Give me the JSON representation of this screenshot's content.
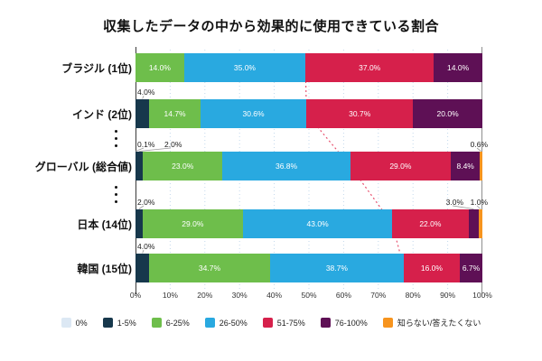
{
  "title": "収集したデータの中から効果的に使用できている割合",
  "chart_data": {
    "type": "bar",
    "orientation": "horizontal",
    "stacked": true,
    "unit": "%",
    "title": "収集したデータの中から効果的に使用できている割合",
    "categories": [
      "ブラジル (1位)",
      "インド (2位)",
      "グローバル (総合値)",
      "日本 (14位)",
      "韓国 (15位)"
    ],
    "series": [
      {
        "name": "0%",
        "color": "#dce8f4",
        "values": [
          0,
          0,
          0.1,
          0,
          0
        ]
      },
      {
        "name": "1-5%",
        "color": "#17384c",
        "values": [
          0,
          4.0,
          2.0,
          2.0,
          4.0
        ]
      },
      {
        "name": "6-25%",
        "color": "#6ebe4b",
        "values": [
          14.0,
          14.7,
          23.0,
          29.0,
          34.7
        ]
      },
      {
        "name": "26-50%",
        "color": "#29a9e0",
        "values": [
          35.0,
          30.6,
          36.8,
          43.0,
          38.7
        ]
      },
      {
        "name": "51-75%",
        "color": "#d6204b",
        "values": [
          37.0,
          30.7,
          29.0,
          22.0,
          16.0
        ]
      },
      {
        "name": "76-100%",
        "color": "#5e1055",
        "values": [
          14.0,
          20.0,
          8.4,
          3.0,
          6.7
        ]
      },
      {
        "name": "知らない/答えたくない",
        "color": "#f7941e",
        "values": [
          0,
          0,
          0.6,
          1.0,
          0
        ]
      }
    ],
    "x_ticks": [
      "0%",
      "10%",
      "20%",
      "30%",
      "40%",
      "50%",
      "60%",
      "70%",
      "80%",
      "90%",
      "100%"
    ],
    "xlim": [
      0,
      100
    ],
    "grid": "vertical-dotted",
    "legend_position": "bottom",
    "connector_line": {
      "style": "dotted",
      "color": "#e8526f",
      "after_series": "26-50%"
    },
    "ellipsis_after_rows": [
      "インド (2位)",
      "グローバル (総合値)"
    ]
  },
  "colors": {
    "grid": "#c3d9ec",
    "axis_left": "#3a3a3a",
    "axis_right": "#8f8f8f",
    "leader": "#9a9a9a",
    "background": "#ffffff"
  }
}
